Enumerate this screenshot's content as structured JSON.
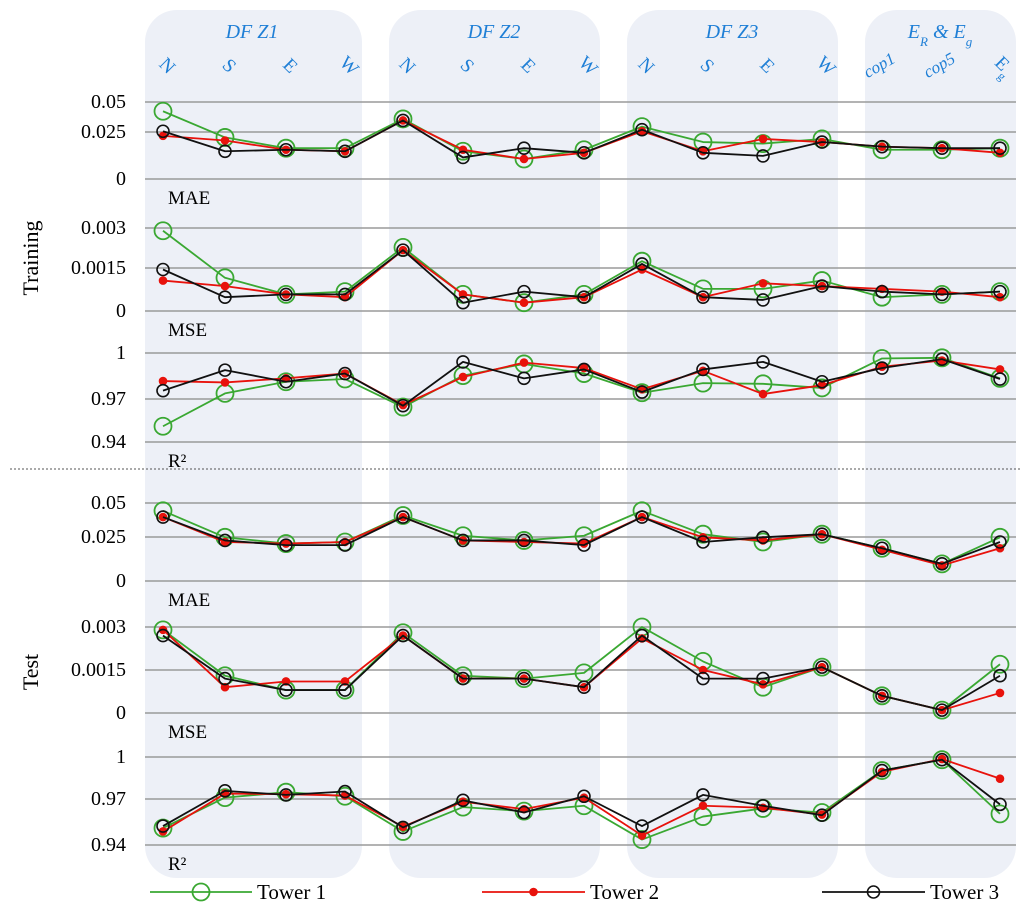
{
  "colors": {
    "tower1": "#3aa832",
    "tower2": "#e8120c",
    "tower3": "#111111",
    "group_bg": "#edf0f7",
    "header_text": "#1f7fd6",
    "axis_line": "#9a9a9a",
    "separator": "#555555"
  },
  "chart_data": {
    "type": "line",
    "groups": [
      {
        "label": "DF Z1",
        "categories": [
          "N",
          "S",
          "E",
          "W"
        ]
      },
      {
        "label": "DF Z2",
        "categories": [
          "N",
          "S",
          "E",
          "W"
        ]
      },
      {
        "label": "DF Z3",
        "categories": [
          "N",
          "S",
          "E",
          "W"
        ]
      },
      {
        "label": "E_R & E_g",
        "categories": [
          "cop1",
          "cop5",
          "E_g"
        ]
      }
    ],
    "legend": [
      {
        "name": "Tower 1",
        "marker": "open-circle-large"
      },
      {
        "name": "Tower 2",
        "marker": "filled-dot"
      },
      {
        "name": "Tower 3",
        "marker": "open-circle"
      }
    ],
    "sections": [
      {
        "label": "Training",
        "panels": [
          {
            "metric": "MAE",
            "ylim": [
              0,
              0.05
            ],
            "yticks": [
              "0.05",
              "0.025",
              "0"
            ],
            "series": [
              {
                "name": "Tower 1",
                "values": [
                  0.044,
                  0.027,
                  0.02,
                  0.02,
                  0.039,
                  0.018,
                  0.013,
                  0.019,
                  0.034,
                  0.024,
                  0.023,
                  0.026,
                  0.019,
                  0.019,
                  0.02
                ]
              },
              {
                "name": "Tower 2",
                "values": [
                  0.028,
                  0.025,
                  0.019,
                  0.018,
                  0.038,
                  0.019,
                  0.013,
                  0.017,
                  0.031,
                  0.018,
                  0.026,
                  0.024,
                  0.021,
                  0.02,
                  0.017
                ]
              },
              {
                "name": "Tower 3",
                "values": [
                  0.031,
                  0.018,
                  0.019,
                  0.018,
                  0.038,
                  0.014,
                  0.02,
                  0.017,
                  0.032,
                  0.017,
                  0.015,
                  0.024,
                  0.021,
                  0.02,
                  0.02
                ]
              }
            ]
          },
          {
            "metric": "MSE",
            "ylim": [
              0,
              0.003
            ],
            "yticks": [
              "0.003",
              "0.0015",
              "0"
            ],
            "series": [
              {
                "name": "Tower 1",
                "values": [
                  0.0029,
                  0.0012,
                  0.0006,
                  0.0007,
                  0.0023,
                  0.0006,
                  0.0003,
                  0.0006,
                  0.0018,
                  0.0008,
                  0.0008,
                  0.0011,
                  0.0005,
                  0.0006,
                  0.0007
                ]
              },
              {
                "name": "Tower 2",
                "values": [
                  0.0011,
                  0.0009,
                  0.0006,
                  0.0005,
                  0.0022,
                  0.0006,
                  0.0003,
                  0.0005,
                  0.0015,
                  0.0005,
                  0.001,
                  0.0009,
                  0.0008,
                  0.0007,
                  0.0005
                ]
              },
              {
                "name": "Tower 3",
                "values": [
                  0.0015,
                  0.0005,
                  0.0006,
                  0.0006,
                  0.0022,
                  0.0003,
                  0.0007,
                  0.0005,
                  0.0017,
                  0.0005,
                  0.0004,
                  0.0009,
                  0.0007,
                  0.0006,
                  0.0007
                ]
              }
            ]
          },
          {
            "metric": "R²",
            "ylim": [
              0.935,
              1.0
            ],
            "yticks": [
              "1",
              "0.97",
              "0.94"
            ],
            "series": [
              {
                "name": "Tower 1",
                "values": [
                  0.9465,
                  0.9705,
                  0.979,
                  0.981,
                  0.9605,
                  0.9835,
                  0.992,
                  0.985,
                  0.971,
                  0.978,
                  0.9775,
                  0.9745,
                  0.996,
                  0.9965,
                  0.9815
                ]
              },
              {
                "name": "Tower 2",
                "values": [
                  0.9795,
                  0.9785,
                  0.9815,
                  0.985,
                  0.962,
                  0.9825,
                  0.993,
                  0.989,
                  0.9735,
                  0.987,
                  0.97,
                  0.9765,
                  0.99,
                  0.9945,
                  0.988
                ]
              },
              {
                "name": "Tower 3",
                "values": [
                  0.9725,
                  0.9875,
                  0.979,
                  0.985,
                  0.9615,
                  0.9935,
                  0.9815,
                  0.988,
                  0.9715,
                  0.988,
                  0.9935,
                  0.979,
                  0.989,
                  0.9955,
                  0.981
                ]
              }
            ]
          }
        ]
      },
      {
        "label": "Test",
        "panels": [
          {
            "metric": "MAE",
            "ylim": [
              0,
              0.05
            ],
            "yticks": [
              "0.05",
              "0.025",
              "0"
            ],
            "series": [
              {
                "name": "Tower 1",
                "values": [
                  0.045,
                  0.028,
                  0.024,
                  0.025,
                  0.042,
                  0.029,
                  0.026,
                  0.029,
                  0.045,
                  0.03,
                  0.025,
                  0.03,
                  0.021,
                  0.011,
                  0.028
                ]
              },
              {
                "name": "Tower 2",
                "values": [
                  0.041,
                  0.025,
                  0.024,
                  0.025,
                  0.041,
                  0.026,
                  0.025,
                  0.024,
                  0.041,
                  0.028,
                  0.026,
                  0.03,
                  0.02,
                  0.01,
                  0.021
                ]
              },
              {
                "name": "Tower 3",
                "values": [
                  0.041,
                  0.026,
                  0.023,
                  0.023,
                  0.041,
                  0.026,
                  0.026,
                  0.023,
                  0.041,
                  0.025,
                  0.028,
                  0.03,
                  0.021,
                  0.011,
                  0.025
                ]
              }
            ]
          },
          {
            "metric": "MSE",
            "ylim": [
              0,
              0.003
            ],
            "yticks": [
              "0.003",
              "0.0015",
              "0"
            ],
            "series": [
              {
                "name": "Tower 1",
                "values": [
                  0.0029,
                  0.0013,
                  0.0008,
                  0.0008,
                  0.0028,
                  0.0013,
                  0.0012,
                  0.0014,
                  0.003,
                  0.0018,
                  0.0009,
                  0.0016,
                  0.0006,
                  0.0001,
                  0.0017
                ]
              },
              {
                "name": "Tower 2",
                "values": [
                  0.0029,
                  0.0009,
                  0.0011,
                  0.0011,
                  0.0027,
                  0.0012,
                  0.0012,
                  0.0009,
                  0.0026,
                  0.0015,
                  0.001,
                  0.0016,
                  0.0006,
                  0.0001,
                  0.0007
                ]
              },
              {
                "name": "Tower 3",
                "values": [
                  0.0027,
                  0.0012,
                  0.0008,
                  0.0008,
                  0.0027,
                  0.0012,
                  0.0012,
                  0.0009,
                  0.0027,
                  0.0012,
                  0.0012,
                  0.0016,
                  0.0006,
                  0.0001,
                  0.0013
                ]
              }
            ]
          },
          {
            "metric": "R²",
            "ylim": [
              0.935,
              1.0
            ],
            "yticks": [
              "1",
              "0.97",
              "0.94"
            ],
            "series": [
              {
                "name": "Tower 1",
                "values": [
                  0.9475,
                  0.97,
                  0.974,
                  0.971,
                  0.945,
                  0.963,
                  0.96,
                  0.964,
                  0.939,
                  0.956,
                  0.962,
                  0.959,
                  0.99,
                  0.998,
                  0.958
                ]
              },
              {
                "name": "Tower 2",
                "values": [
                  0.945,
                  0.973,
                  0.9725,
                  0.9715,
                  0.9485,
                  0.967,
                  0.9615,
                  0.97,
                  0.942,
                  0.964,
                  0.9625,
                  0.9575,
                  0.989,
                  0.9985,
                  0.984
                ]
              },
              {
                "name": "Tower 3",
                "values": [
                  0.949,
                  0.975,
                  0.972,
                  0.9745,
                  0.948,
                  0.968,
                  0.959,
                  0.971,
                  0.949,
                  0.972,
                  0.964,
                  0.957,
                  0.99,
                  0.998,
                  0.965
                ]
              }
            ]
          }
        ]
      }
    ]
  }
}
